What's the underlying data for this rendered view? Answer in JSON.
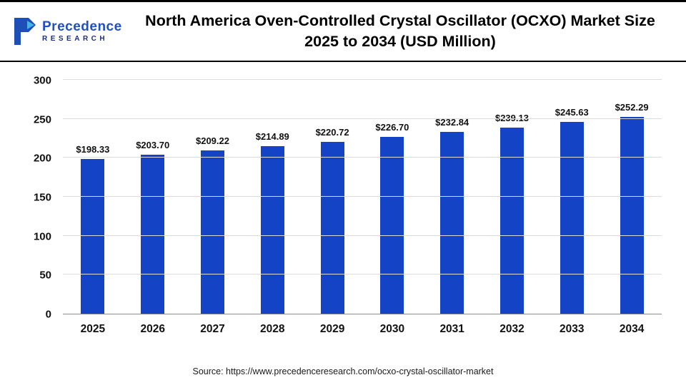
{
  "header": {
    "logo_name": "Precedence",
    "logo_subname": "RESEARCH",
    "title": "North America Oven-Controlled Crystal Oscillator (OCXO) Market Size 2025 to 2034 (USD Million)"
  },
  "chart_data": {
    "type": "bar",
    "title": "North America Oven-Controlled Crystal Oscillator (OCXO) Market Size 2025 to 2034 (USD Million)",
    "categories": [
      "2025",
      "2026",
      "2027",
      "2028",
      "2029",
      "2030",
      "2031",
      "2032",
      "2033",
      "2034"
    ],
    "values": [
      198.33,
      203.7,
      209.22,
      214.89,
      220.72,
      226.7,
      232.84,
      239.13,
      245.63,
      252.29
    ],
    "value_labels": [
      "$198.33",
      "$203.70",
      "$209.22",
      "$214.89",
      "$220.72",
      "$226.70",
      "$232.84",
      "$239.13",
      "$245.63",
      "$252.29"
    ],
    "xlabel": "",
    "ylabel": "",
    "ylim": [
      0,
      300
    ],
    "yticks": [
      0,
      50,
      100,
      150,
      200,
      250,
      300
    ],
    "grid": true,
    "legend": false,
    "bar_color": "#1543c6"
  },
  "footer": {
    "source": "Source: https://www.precedenceresearch.com/ocxo-crystal-oscillator-market"
  }
}
